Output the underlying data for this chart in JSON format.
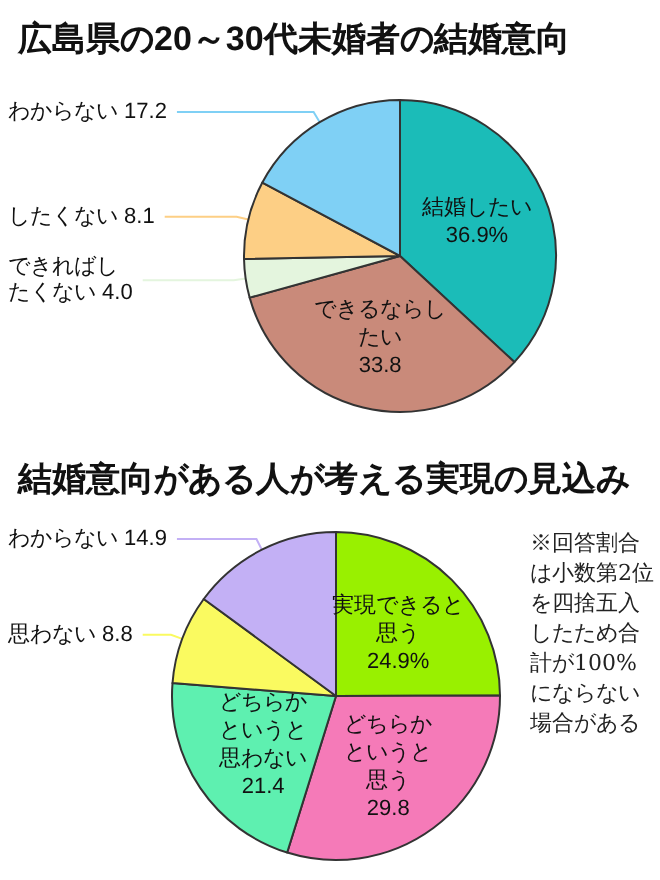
{
  "chart_data": [
    {
      "type": "pie",
      "title": "広島県の20～30代未婚者の結婚意向",
      "categories": [
        "結婚したい",
        "できるならしたい",
        "できればしたくない",
        "したくない",
        "わからない"
      ],
      "values": [
        36.9,
        33.8,
        4.0,
        8.1,
        17.2
      ],
      "value_labels": [
        "36.9%",
        "33.8",
        "4.0",
        "8.1",
        "17.2"
      ],
      "colors": [
        "#1bbcb8",
        "#c98a7a",
        "#e4f5de",
        "#fdcf85",
        "#7fd0f5"
      ]
    },
    {
      "type": "pie",
      "title": "結婚意向がある人が考える実現の見込み",
      "categories": [
        "実現できると思う",
        "どちらかというと思う",
        "どちらかというと思わない",
        "思わない",
        "わからない"
      ],
      "values": [
        24.9,
        29.8,
        21.4,
        8.8,
        14.9
      ],
      "value_labels": [
        "24.9%",
        "29.8",
        "21.4",
        "8.8",
        "14.9"
      ],
      "colors": [
        "#99f000",
        "#f57ab8",
        "#5ef0b0",
        "#fafa60",
        "#c3b0f5"
      ],
      "annotations": [
        "※回答割合は小数第2位を四捨五入したため合計が100%にならない場合がある"
      ]
    }
  ]
}
